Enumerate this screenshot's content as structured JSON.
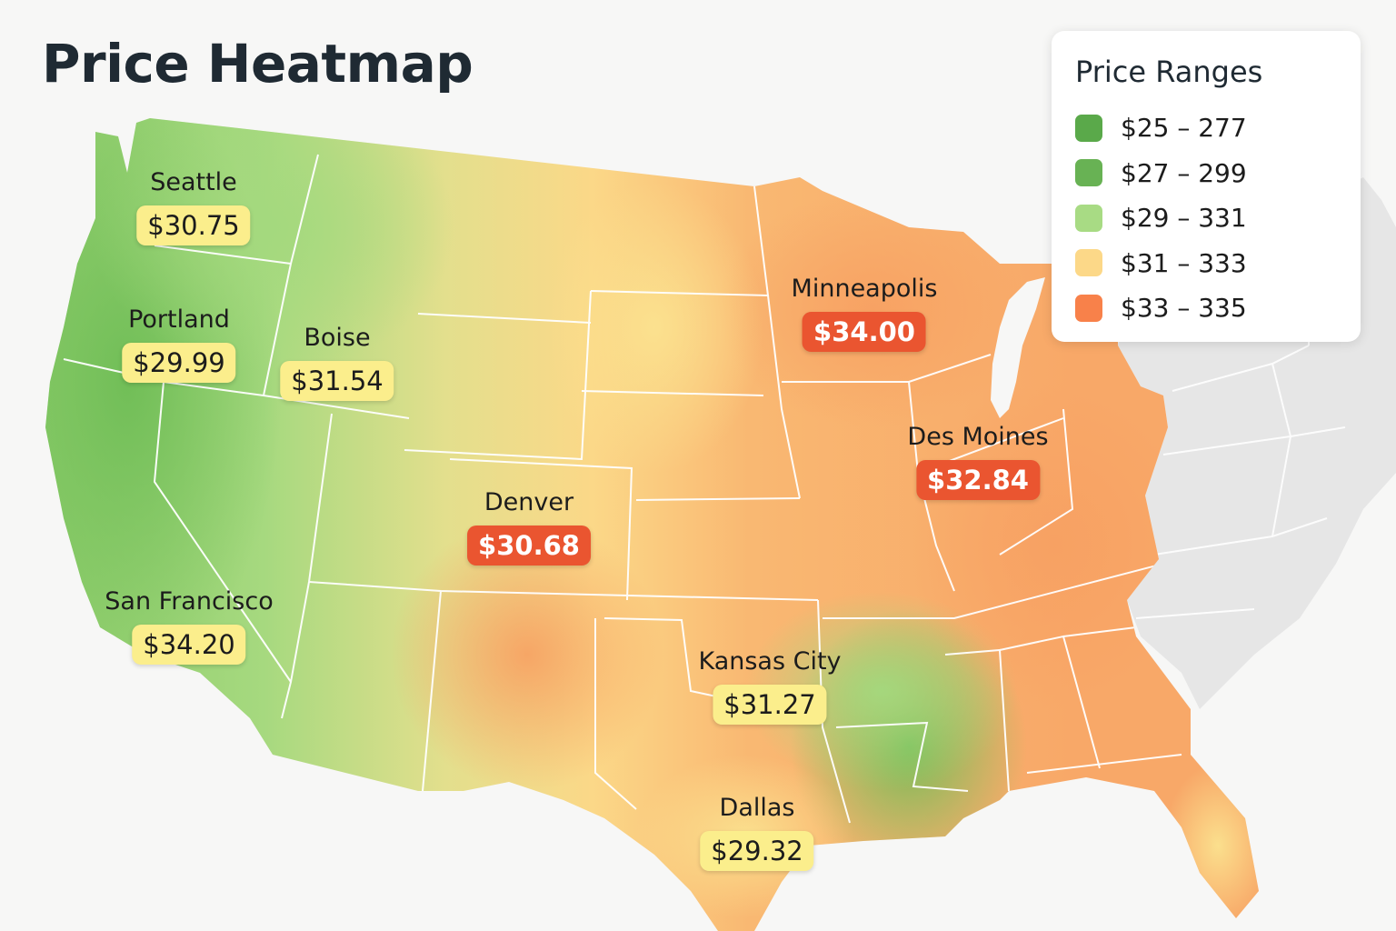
{
  "title": "Price Heatmap",
  "legend": {
    "title": "Price Ranges",
    "items": [
      {
        "label": "$25 – 277",
        "color": "#5aa94a"
      },
      {
        "label": "$27 – 299",
        "color": "#68b254"
      },
      {
        "label": "$29 – 331",
        "color": "#a8db84"
      },
      {
        "label": "$31 – 333",
        "color": "#fcd888"
      },
      {
        "label": "$33 – 335",
        "color": "#f8814a"
      }
    ]
  },
  "cities": [
    {
      "name": "Seattle",
      "price": "$30.75",
      "level": "yellow"
    },
    {
      "name": "Portland",
      "price": "$29.99",
      "level": "yellow"
    },
    {
      "name": "Boise",
      "price": "$31.54",
      "level": "yellow"
    },
    {
      "name": "Minneapolis",
      "price": "$34.00",
      "level": "red"
    },
    {
      "name": "Des Moines",
      "price": "$32.84",
      "level": "red"
    },
    {
      "name": "Denver",
      "price": "$30.68",
      "level": "red"
    },
    {
      "name": "San Francisco",
      "price": "$34.20",
      "level": "yellow"
    },
    {
      "name": "Kansas City",
      "price": "$31.27",
      "level": "yellow"
    },
    {
      "name": "Dallas",
      "price": "$29.32",
      "level": "yellow"
    }
  ]
}
